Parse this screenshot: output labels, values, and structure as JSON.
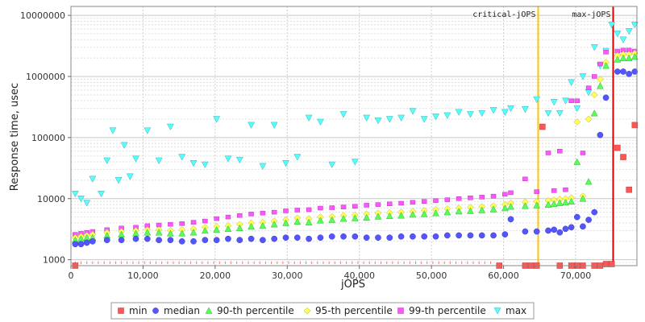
{
  "chart_data": {
    "type": "scatter",
    "title": "",
    "xlabel": "jOPS",
    "ylabel": "Response time, usec",
    "xlim": [
      0,
      78500
    ],
    "ylim": [
      800,
      14000000
    ],
    "y_scale": "log",
    "grid": true,
    "x_ticks": [
      0,
      10000,
      20000,
      30000,
      40000,
      50000,
      60000,
      70000
    ],
    "x_tick_labels": [
      "0",
      "10,000",
      "20,000",
      "30,000",
      "40,000",
      "50,000",
      "60,000",
      "70,000"
    ],
    "y_ticks": [
      1000,
      10000,
      100000,
      1000000,
      10000000
    ],
    "y_tick_labels": [
      "1000",
      "10000",
      "100000",
      "1000000",
      "10000000"
    ],
    "legend_position": "bottom",
    "markers": [
      {
        "label": "critical-jOPS",
        "x": 64800,
        "color": "#ffc400"
      },
      {
        "label": "max-jOPS",
        "x": 75200,
        "color": "#dd0000"
      }
    ],
    "series": [
      {
        "name": "min",
        "color": "#ff5555",
        "symbol": "square",
        "x": [
          600,
          59400,
          63000,
          63800,
          64600,
          65400,
          67800,
          69400,
          70200,
          71000,
          72600,
          73400,
          74200,
          75000,
          75800,
          76600,
          77400,
          78200
        ],
        "values": [
          800,
          800,
          800,
          800,
          800,
          150000,
          800,
          800,
          800,
          800,
          800,
          800,
          850,
          850,
          68000,
          48000,
          14000,
          160000
        ]
      },
      {
        "name": "median",
        "color": "#5555ff",
        "symbol": "circle",
        "x": [
          600,
          1400,
          2200,
          3000,
          5000,
          7000,
          9000,
          10600,
          12200,
          13800,
          15400,
          17000,
          18600,
          20200,
          21800,
          23400,
          25000,
          26600,
          28200,
          29800,
          31400,
          33000,
          34600,
          36200,
          37800,
          39400,
          41000,
          42600,
          44200,
          45800,
          47400,
          49000,
          50600,
          52200,
          53800,
          55400,
          57000,
          58600,
          60200,
          61000,
          63000,
          64600,
          66200,
          67000,
          67800,
          68600,
          69400,
          70200,
          71000,
          71800,
          72600,
          73400,
          74200,
          75800,
          76600,
          77400,
          78200
        ],
        "values": [
          1800,
          1800,
          1900,
          2000,
          2100,
          2100,
          2200,
          2200,
          2100,
          2100,
          2000,
          2000,
          2100,
          2100,
          2200,
          2100,
          2200,
          2100,
          2200,
          2300,
          2300,
          2200,
          2300,
          2400,
          2400,
          2400,
          2300,
          2300,
          2300,
          2400,
          2400,
          2400,
          2400,
          2500,
          2500,
          2500,
          2500,
          2500,
          2600,
          4600,
          2900,
          2900,
          3000,
          3100,
          2800,
          3200,
          3400,
          5000,
          3500,
          4500,
          6000,
          110000,
          450000,
          1200000,
          1200000,
          1100000,
          1200000
        ]
      },
      {
        "name": "90-th percentile",
        "color": "#55ff55",
        "symbol": "triangle-up",
        "x": [
          600,
          1400,
          2200,
          3000,
          5000,
          7000,
          9000,
          10600,
          12200,
          13800,
          15400,
          17000,
          18600,
          20200,
          21800,
          23400,
          25000,
          26600,
          28200,
          29800,
          31400,
          33000,
          34600,
          36200,
          37800,
          39400,
          41000,
          42600,
          44200,
          45800,
          47400,
          49000,
          50600,
          52200,
          53800,
          55400,
          57000,
          58600,
          60200,
          61000,
          63000,
          64600,
          66200,
          67000,
          67800,
          68600,
          69400,
          70200,
          71000,
          71800,
          72600,
          73400,
          74200,
          75800,
          76600,
          77400,
          78200
        ],
        "values": [
          2100,
          2200,
          2300,
          2300,
          2500,
          2600,
          2700,
          2800,
          2800,
          2700,
          2700,
          2800,
          3000,
          3100,
          3200,
          3300,
          3500,
          3600,
          3800,
          4000,
          4200,
          4100,
          4400,
          4500,
          4700,
          4800,
          4900,
          5100,
          5200,
          5300,
          5500,
          5600,
          5800,
          6000,
          6200,
          6300,
          6500,
          6700,
          7000,
          7400,
          7600,
          7800,
          8000,
          8200,
          8500,
          8700,
          9000,
          40000,
          10000,
          19000,
          250000,
          700000,
          1500000,
          1900000,
          2000000,
          2000000,
          2100000
        ]
      },
      {
        "name": "95-th percentile",
        "color": "#ffff55",
        "symbol": "diamond",
        "x": [
          600,
          1400,
          2200,
          3000,
          5000,
          7000,
          9000,
          10600,
          12200,
          13800,
          15400,
          17000,
          18600,
          20200,
          21800,
          23400,
          25000,
          26600,
          28200,
          29800,
          31400,
          33000,
          34600,
          36200,
          37800,
          39400,
          41000,
          42600,
          44200,
          45800,
          47400,
          49000,
          50600,
          52200,
          53800,
          55400,
          57000,
          58600,
          60200,
          61000,
          63000,
          64600,
          66200,
          67000,
          67800,
          68600,
          69400,
          70200,
          71000,
          71800,
          72600,
          73400,
          74200,
          75800,
          76600,
          77400,
          78200
        ],
        "values": [
          2300,
          2400,
          2500,
          2600,
          2800,
          2900,
          3000,
          3100,
          3100,
          3000,
          3100,
          3200,
          3400,
          3500,
          3600,
          3800,
          4000,
          4100,
          4300,
          4500,
          4800,
          4700,
          5000,
          5100,
          5300,
          5400,
          5600,
          5800,
          5900,
          6000,
          6200,
          6400,
          6600,
          6800,
          7000,
          7200,
          7400,
          7600,
          8000,
          8500,
          8800,
          9000,
          9300,
          9500,
          9800,
          10000,
          10300,
          180000,
          11000,
          200000,
          500000,
          900000,
          1700000,
          2200000,
          2300000,
          2300000,
          2400000
        ]
      },
      {
        "name": "99-th percentile",
        "color": "#ff55ff",
        "symbol": "square-small",
        "x": [
          600,
          1400,
          2200,
          3000,
          5000,
          7000,
          9000,
          10600,
          12200,
          13800,
          15400,
          17000,
          18600,
          20200,
          21800,
          23400,
          25000,
          26600,
          28200,
          29800,
          31400,
          33000,
          34600,
          36200,
          37800,
          39400,
          41000,
          42600,
          44200,
          45800,
          47400,
          49000,
          50600,
          52200,
          53800,
          55400,
          57000,
          58600,
          60200,
          61000,
          63000,
          64600,
          66200,
          67000,
          67800,
          68600,
          69400,
          70200,
          71000,
          71800,
          72600,
          73400,
          74200,
          75800,
          76600,
          77400,
          78200
        ],
        "values": [
          2600,
          2700,
          2800,
          2900,
          3100,
          3300,
          3400,
          3600,
          3700,
          3800,
          3900,
          4100,
          4300,
          4700,
          5000,
          5300,
          5600,
          5800,
          6000,
          6300,
          6500,
          6600,
          7000,
          7100,
          7300,
          7500,
          7800,
          8000,
          8200,
          8400,
          8700,
          9000,
          9300,
          9600,
          10000,
          10300,
          10600,
          11000,
          11800,
          12500,
          21000,
          13000,
          56000,
          13500,
          60000,
          14000,
          400000,
          400000,
          56000,
          650000,
          1000000,
          1600000,
          2500000,
          2600000,
          2700000,
          2700000,
          2600000
        ]
      },
      {
        "name": "max",
        "color": "#55ffff",
        "symbol": "triangle-down",
        "x": [
          600,
          1400,
          2200,
          3000,
          4200,
          5000,
          5800,
          6600,
          7400,
          8200,
          9000,
          10600,
          12200,
          13800,
          15400,
          17000,
          18600,
          20200,
          21800,
          23400,
          25000,
          26600,
          28200,
          29800,
          31400,
          33000,
          34600,
          36200,
          37800,
          39400,
          41000,
          42600,
          44200,
          45800,
          47400,
          49000,
          50600,
          52200,
          53800,
          55400,
          57000,
          58600,
          60200,
          61000,
          63000,
          64600,
          66200,
          67000,
          67800,
          68600,
          69400,
          70200,
          71000,
          71800,
          72600,
          73400,
          74200,
          75000,
          75800,
          76600,
          77400,
          78200
        ],
        "values": [
          12000,
          10000,
          8500,
          21000,
          12000,
          42000,
          130000,
          20000,
          75000,
          23000,
          45000,
          130000,
          42000,
          150000,
          48000,
          38000,
          36000,
          200000,
          45000,
          43000,
          160000,
          34000,
          160000,
          38000,
          48000,
          210000,
          180000,
          36000,
          240000,
          40000,
          210000,
          190000,
          200000,
          210000,
          270000,
          200000,
          220000,
          230000,
          260000,
          240000,
          250000,
          280000,
          260000,
          300000,
          290000,
          420000,
          250000,
          380000,
          250000,
          400000,
          800000,
          300000,
          1000000,
          550000,
          3000000,
          1500000,
          2600000,
          7000000,
          5000000,
          4000000,
          5500000,
          7000000
        ]
      }
    ]
  }
}
